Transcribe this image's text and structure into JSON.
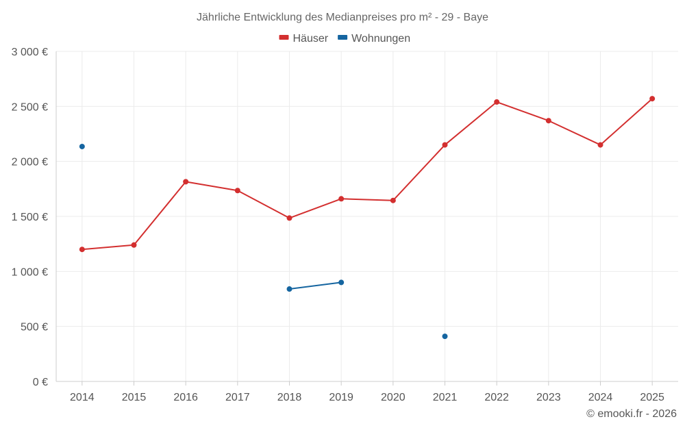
{
  "chart_data": {
    "type": "line",
    "title": "Jährliche Entwicklung des Medianpreises pro m² - 29 - Baye",
    "x": [
      "2014",
      "2015",
      "2016",
      "2017",
      "2018",
      "2019",
      "2020",
      "2021",
      "2022",
      "2023",
      "2024",
      "2025"
    ],
    "ylim": [
      0,
      3000
    ],
    "yticks": [
      0,
      500,
      1000,
      1500,
      2000,
      2500,
      3000
    ],
    "ytick_labels": [
      "0 €",
      "500 €",
      "1 000 €",
      "1 500 €",
      "2 000 €",
      "2 500 €",
      "3 000 €"
    ],
    "grid": true,
    "legend_position": "top-center",
    "series": [
      {
        "name": "Häuser",
        "color": "#d32f2f",
        "values": [
          1200,
          1240,
          1815,
          1735,
          1485,
          1660,
          1645,
          2150,
          2540,
          2370,
          2150,
          2570
        ]
      },
      {
        "name": "Wohnungen",
        "color": "#1565a0",
        "values": [
          2135,
          null,
          null,
          null,
          840,
          900,
          null,
          410,
          null,
          null,
          null,
          null
        ]
      }
    ]
  },
  "credit": "© emooki.fr - 2026"
}
